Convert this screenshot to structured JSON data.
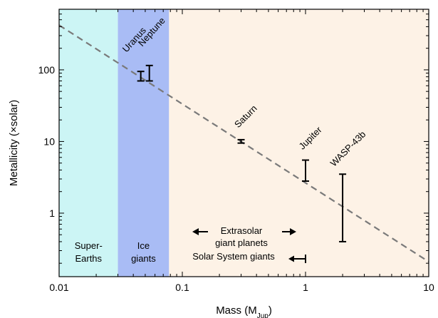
{
  "chart_data": {
    "type": "scatter",
    "title": "",
    "xlabel_main": "Mass (M",
    "xlabel_sub": "Jup",
    "xlabel_close": ")",
    "ylabel": "Metallicity (×solar)",
    "x_scale": "log",
    "y_scale": "log",
    "xlim": [
      0.01,
      10
    ],
    "ylim": [
      0.13,
      700
    ],
    "x_ticks": [
      {
        "value": 0.01,
        "label": "0.01"
      },
      {
        "value": 0.1,
        "label": "0.1"
      },
      {
        "value": 1,
        "label": "1"
      },
      {
        "value": 10,
        "label": "10"
      }
    ],
    "y_ticks": [
      {
        "value": 1,
        "label": "1"
      },
      {
        "value": 10,
        "label": "10"
      },
      {
        "value": 100,
        "label": "100"
      }
    ],
    "grid": false,
    "regions": [
      {
        "x_range": [
          0.01,
          0.03
        ],
        "label_lines": [
          "Super-",
          "Earths"
        ],
        "color": "#ccf5f5"
      },
      {
        "x_range": [
          0.03,
          0.078
        ],
        "label_lines": [
          "Ice",
          "giants"
        ],
        "color": "#a9bcf5"
      },
      {
        "x_range": [
          0.078,
          10
        ],
        "label_lines": [],
        "color": "#fdf2e6"
      }
    ],
    "trend_line": {
      "style": "dashed",
      "color": "#7a7a7a",
      "points": [
        [
          0.01,
          420
        ],
        [
          10,
          0.21
        ]
      ]
    },
    "points": [
      {
        "name": "Uranus",
        "x": 0.046,
        "y": 80,
        "y_low": 70,
        "y_high": 95
      },
      {
        "name": "Neptune",
        "x": 0.054,
        "y": 90,
        "y_low": 70,
        "y_high": 115
      },
      {
        "name": "Saturn",
        "x": 0.3,
        "y": 10,
        "y_low": 9.5,
        "y_high": 10.6
      },
      {
        "name": "Jupiter",
        "x": 1.0,
        "y": 3.8,
        "y_low": 2.8,
        "y_high": 5.5
      },
      {
        "name": "WASP-43b",
        "x": 2.0,
        "y": 1.2,
        "y_low": 0.4,
        "y_high": 3.5
      }
    ],
    "annotations": {
      "extrasolar_lines": [
        "Extrasolar",
        "giant planets"
      ],
      "solar_system_label": "Solar System giants"
    }
  },
  "colors": {
    "super_earths": "#ccf5f5",
    "ice_giants": "#a9bcf5",
    "giants": "#fdf2e6",
    "trend": "#7a7a7a",
    "marks": "#000000"
  }
}
